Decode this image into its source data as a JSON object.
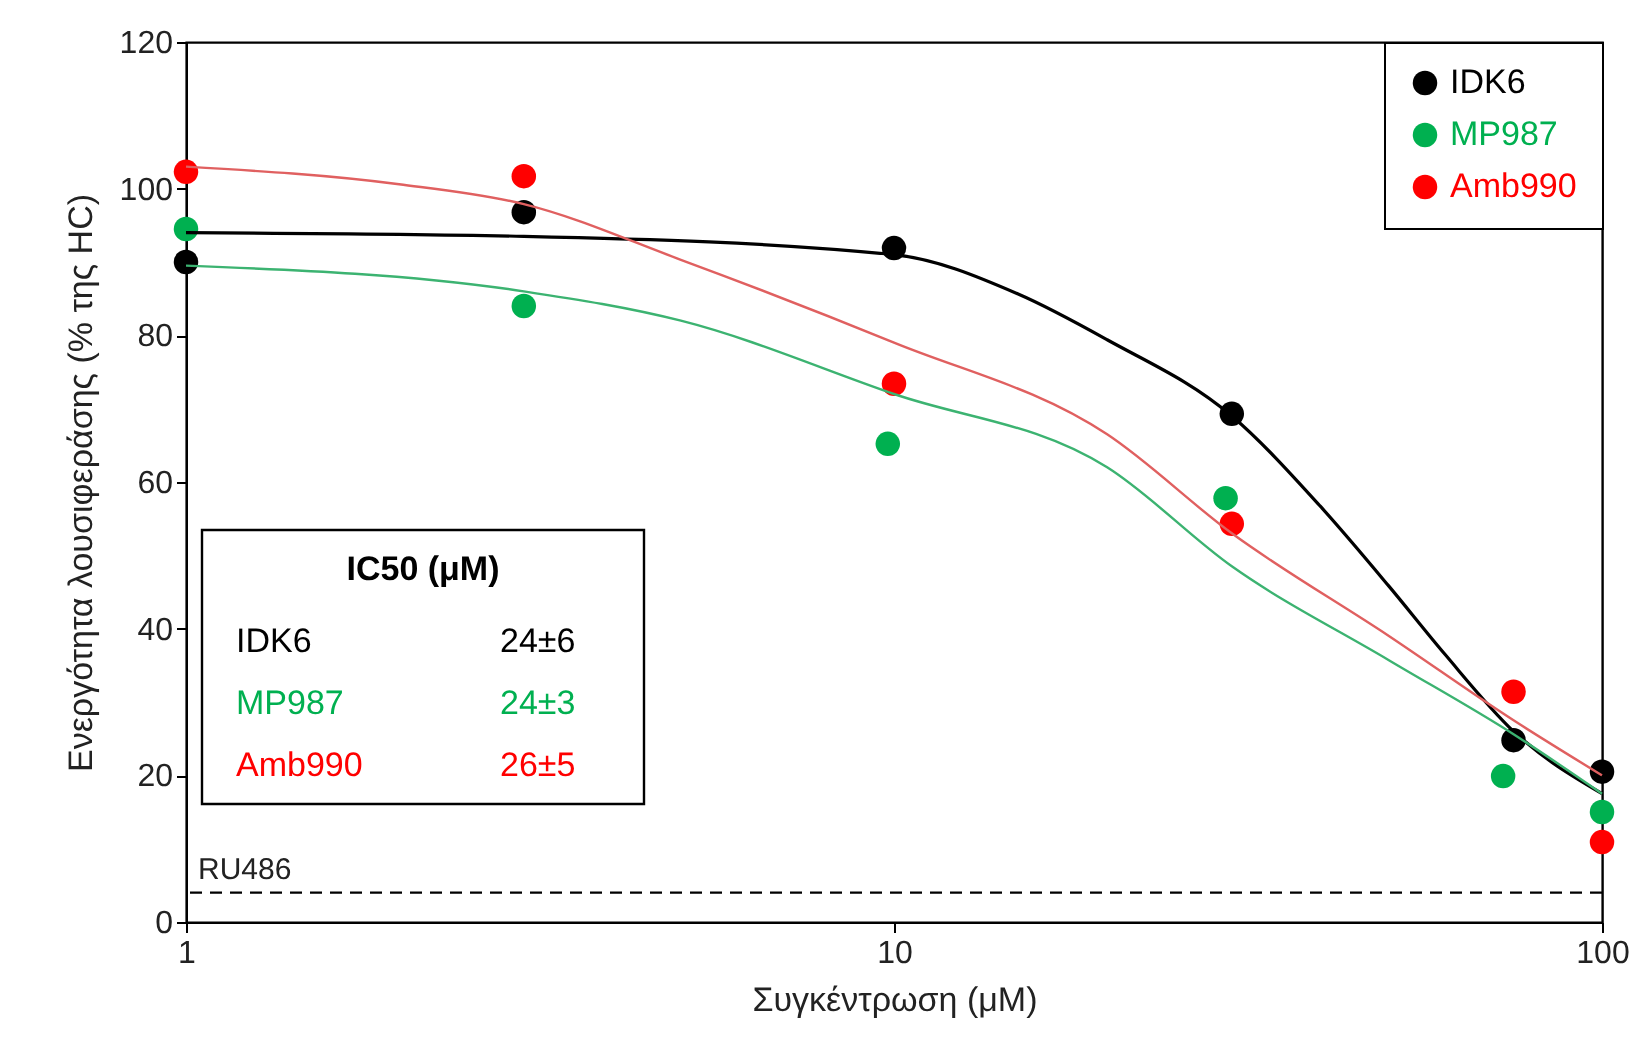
{
  "chart_data": {
    "type": "scatter",
    "xlabel": "Συγκέντρωση (μΜ)",
    "ylabel": "Ενεργότητα λουσιφεράσης (% της HC)",
    "log": "x",
    "xlim": [
      1,
      100
    ],
    "xticks": [
      1,
      10,
      100
    ],
    "ylim": [
      0,
      120
    ],
    "yticks": [
      0,
      20,
      40,
      60,
      80,
      100,
      120
    ],
    "grid": false,
    "legend": "top right",
    "marker": "circle",
    "series": [
      {
        "name": "IDK6",
        "color": "#000000",
        "x": [
          1,
          3,
          10,
          30,
          75,
          100
        ],
        "values": [
          90,
          96.8,
          91.9,
          69.3,
          24.8,
          20.5
        ]
      },
      {
        "name": "MP987",
        "color": "#00b050",
        "x": [
          1,
          3,
          9.8,
          29.4,
          72.5,
          100
        ],
        "values": [
          94.5,
          84,
          65.2,
          57.8,
          19.9,
          15
        ]
      },
      {
        "name": "Amb990",
        "color": "#ff0000",
        "x": [
          1,
          3,
          10,
          30,
          75,
          100
        ],
        "values": [
          102.3,
          101.7,
          73.4,
          54.3,
          31.4,
          10.9
        ]
      },
      {
        "type": "line",
        "marker": "none",
        "color": "#000000",
        "x": [
          1,
          3,
          10,
          15,
          20,
          30,
          40,
          50,
          60,
          75,
          100
        ],
        "values": [
          94,
          93.5,
          91,
          85.6,
          79.4,
          69,
          56.7,
          45.8,
          36.5,
          26,
          17.5
        ]
      },
      {
        "type": "line",
        "marker": "none",
        "color": "#3cb371",
        "x": [
          1,
          3,
          5,
          10,
          20,
          30,
          50,
          75,
          100
        ],
        "values": [
          89.5,
          86,
          82,
          72,
          62,
          48.5,
          35.7,
          25.6,
          17.5
        ]
      },
      {
        "type": "line",
        "marker": "none",
        "color": "#e06060",
        "x": [
          1,
          2,
          3,
          5,
          10,
          20,
          30,
          50,
          75,
          100
        ],
        "values": [
          103,
          100.6,
          97.9,
          90.3,
          79,
          66.5,
          53,
          39,
          27.5,
          20
        ]
      }
    ],
    "ref_lines": [
      {
        "axis": "y",
        "value": 4,
        "label": "RU486",
        "line_style": "dashed",
        "color": "#000000"
      }
    ],
    "annotations": [
      "IC50 (μM)",
      "IDK6",
      "24±6",
      "MP987",
      "24±3",
      "Amb990",
      "26±5"
    ]
  }
}
